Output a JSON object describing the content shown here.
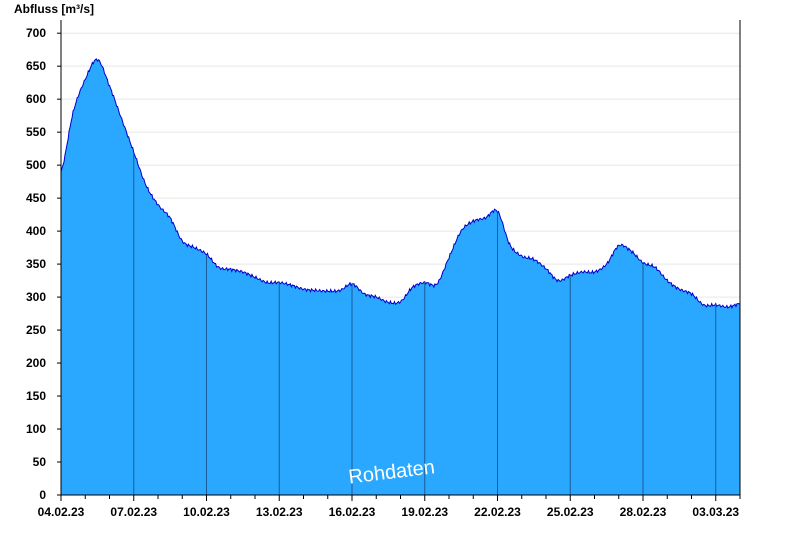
{
  "chart_data": {
    "type": "area",
    "ylabel": "Abfluss [m³/s]",
    "watermark": "Rohdaten",
    "ylim": [
      0,
      720
    ],
    "yticks": [
      0,
      50,
      100,
      150,
      200,
      250,
      300,
      350,
      400,
      450,
      500,
      550,
      600,
      650,
      700
    ],
    "xlim_days": [
      0,
      28
    ],
    "xtick_labels": [
      "04.02.23",
      "07.02.23",
      "10.02.23",
      "13.02.23",
      "16.02.23",
      "19.02.23",
      "22.02.23",
      "25.02.23",
      "28.02.23",
      "03.03.23"
    ],
    "x_dates": [
      "04.02.23",
      "04.02.23 12h",
      "05.02.23",
      "05.02.23 12h",
      "06.02.23",
      "06.02.23 12h",
      "07.02.23",
      "07.02.23 12h",
      "08.02.23",
      "08.02.23 12h",
      "09.02.23",
      "09.02.23 12h",
      "10.02.23",
      "10.02.23 12h",
      "11.02.23",
      "11.02.23 12h",
      "12.02.23",
      "12.02.23 12h",
      "13.02.23",
      "13.02.23 12h",
      "14.02.23",
      "14.02.23 12h",
      "15.02.23",
      "15.02.23 12h",
      "16.02.23",
      "16.02.23 12h",
      "17.02.23",
      "17.02.23 12h",
      "18.02.23",
      "18.02.23 12h",
      "19.02.23",
      "19.02.23 12h",
      "20.02.23",
      "20.02.23 12h",
      "21.02.23",
      "21.02.23 12h",
      "22.02.23",
      "22.02.23 12h",
      "23.02.23",
      "23.02.23 12h",
      "24.02.23",
      "24.02.23 12h",
      "25.02.23",
      "25.02.23 12h",
      "26.02.23",
      "26.02.23 12h",
      "27.02.23",
      "27.02.23 12h",
      "28.02.23",
      "28.02.23 12h",
      "01.03.23",
      "01.03.23 12h",
      "02.03.23",
      "02.03.23 12h",
      "03.03.23",
      "03.03.23 12h",
      "04.03.23"
    ],
    "values": [
      490,
      580,
      630,
      660,
      620,
      570,
      520,
      470,
      440,
      420,
      385,
      375,
      365,
      345,
      342,
      338,
      330,
      322,
      322,
      318,
      312,
      310,
      309,
      310,
      320,
      305,
      300,
      292,
      293,
      315,
      322,
      320,
      360,
      400,
      415,
      420,
      430,
      380,
      362,
      357,
      343,
      325,
      333,
      338,
      338,
      350,
      378,
      370,
      352,
      345,
      325,
      312,
      305,
      288,
      288,
      285,
      290
    ],
    "fill_color": "#2aa8ff",
    "line_color": "#0000cc",
    "grid": true
  }
}
